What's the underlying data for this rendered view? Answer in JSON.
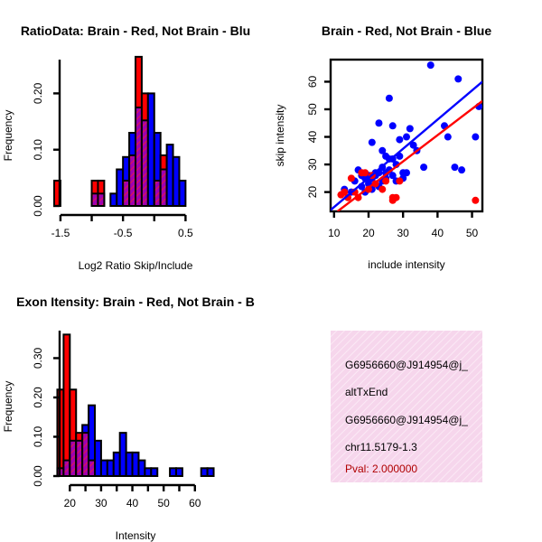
{
  "chart_data": [
    {
      "type": "bar",
      "title": "RatioData: Brain - Red, Not Brain - Blu",
      "xlabel": "Log2 Ratio Skip/Include",
      "ylabel": "Frequency",
      "xlim": [
        -1.6,
        1.0
      ],
      "ylim": [
        0,
        0.26
      ],
      "xticks": [
        "-1.5",
        "-0.5",
        "0.5"
      ],
      "xtick_values": [
        -1.5,
        -0.5,
        0.5
      ],
      "yticks": [
        "0.00",
        "0.10",
        "0.20"
      ],
      "ytick_values": [
        0,
        0.1,
        0.2
      ],
      "bin_start": -1.6,
      "bin_width": 0.1,
      "series": [
        {
          "name": "Brain",
          "color": "#ff0000",
          "values": [
            0.045,
            0,
            0,
            0,
            0,
            0,
            0.045,
            0.045,
            0,
            0,
            0,
            0.045,
            0.09,
            0.265,
            0.2,
            0,
            0.045,
            0.09,
            0,
            0,
            0
          ]
        },
        {
          "name": "Not Brain",
          "color": "#0000ff",
          "values": [
            0,
            0,
            0,
            0,
            0,
            0,
            0.022,
            0.022,
            0,
            0.022,
            0.065,
            0.087,
            0.13,
            0.175,
            0.152,
            0.2,
            0.13,
            0.065,
            0.109,
            0.087,
            0.045
          ]
        }
      ]
    },
    {
      "type": "scatter",
      "title": "Brain - Red, Not Brain - Blue",
      "xlabel": "include intensity",
      "ylabel": "skip intensity",
      "xlim": [
        9,
        53
      ],
      "ylim": [
        13,
        68
      ],
      "xticks": [
        "10",
        "20",
        "30",
        "40",
        "50"
      ],
      "xtick_values": [
        10,
        20,
        30,
        40,
        50
      ],
      "yticks": [
        "20",
        "30",
        "40",
        "50",
        "60"
      ],
      "ytick_values": [
        20,
        30,
        40,
        50,
        60
      ],
      "series": [
        {
          "name": "Not Brain",
          "color": "#0000ff",
          "x": [
            13,
            15,
            16,
            17,
            18,
            18,
            19,
            19,
            20,
            20,
            20,
            21,
            21,
            21,
            22,
            22,
            22,
            23,
            23,
            23,
            24,
            24,
            24,
            25,
            25,
            25,
            26,
            26,
            26,
            27,
            27,
            27,
            28,
            28,
            29,
            29,
            30,
            30,
            31,
            31,
            32,
            33,
            34,
            36,
            38,
            42,
            43,
            45,
            46,
            47,
            51,
            52
          ],
          "y": [
            21,
            20,
            24,
            28,
            22,
            26,
            20,
            25,
            23,
            26,
            24,
            25,
            21,
            38,
            27,
            23,
            26,
            45,
            22,
            27,
            24,
            35,
            29,
            25,
            27,
            33,
            54,
            28,
            32,
            26,
            32,
            44,
            30,
            24,
            33,
            39,
            27,
            25,
            40,
            27,
            43,
            37,
            35,
            29,
            66,
            44,
            40,
            29,
            61,
            28,
            40,
            51
          ],
          "fit": {
            "x": [
              9,
              53
            ],
            "y": [
              13.5,
              60
            ],
            "color": "#0000ff"
          }
        },
        {
          "name": "Brain",
          "color": "#ff0000",
          "x": [
            12,
            13,
            14,
            15,
            16,
            17,
            18,
            19,
            20,
            21,
            22,
            24,
            25,
            27,
            27,
            28,
            29,
            51
          ],
          "y": [
            19,
            20,
            18,
            25,
            20,
            18,
            27,
            27,
            21,
            26,
            23,
            21,
            24,
            18,
            17,
            18,
            24,
            17
          ],
          "fit": {
            "x": [
              11,
              53
            ],
            "y": [
              13,
              53
            ],
            "color": "#ff0000"
          }
        }
      ]
    },
    {
      "type": "bar",
      "title": "Exon Itensity: Brain - Red, Not Brain - B",
      "xlabel": "Intensity",
      "ylabel": "Frequency",
      "xlim": [
        15,
        67
      ],
      "ylim": [
        0,
        0.37
      ],
      "xticks": [
        "20",
        "30",
        "40",
        "50",
        "60"
      ],
      "xtick_values": [
        20,
        30,
        40,
        50,
        60
      ],
      "yticks": [
        "0.00",
        "0.10",
        "0.20",
        "0.30"
      ],
      "ytick_values": [
        0,
        0.1,
        0.2,
        0.3
      ],
      "bin_start": 16,
      "bin_width": 2,
      "series": [
        {
          "name": "Brain",
          "color": "#ff0000",
          "values": [
            0.22,
            0.36,
            0.22,
            0.11,
            0.11,
            0.04,
            0,
            0,
            0,
            0,
            0,
            0,
            0,
            0,
            0,
            0,
            0,
            0,
            0,
            0,
            0,
            0,
            0,
            0,
            0
          ]
        },
        {
          "name": "Not Brain",
          "color": "#0000ff",
          "values": [
            0.02,
            0.04,
            0.09,
            0.09,
            0.13,
            0.18,
            0.09,
            0.04,
            0.04,
            0.06,
            0.11,
            0.06,
            0.06,
            0.04,
            0.02,
            0.02,
            0,
            0,
            0.02,
            0.02,
            0,
            0,
            0,
            0.02,
            0.02
          ]
        }
      ]
    }
  ],
  "info_panel": {
    "background": "#f8dff0",
    "lines": [
      "G6956660@J914954@j_",
      "altTxEnd",
      "G6956660@J914954@j_",
      "chr11.5179-1.3"
    ],
    "pval": "Pval: 2.000000",
    "pval_color": "#b00000"
  },
  "colors": {
    "overlap_fill": "#b000b0",
    "overlap_hatch": "#ff0000"
  }
}
